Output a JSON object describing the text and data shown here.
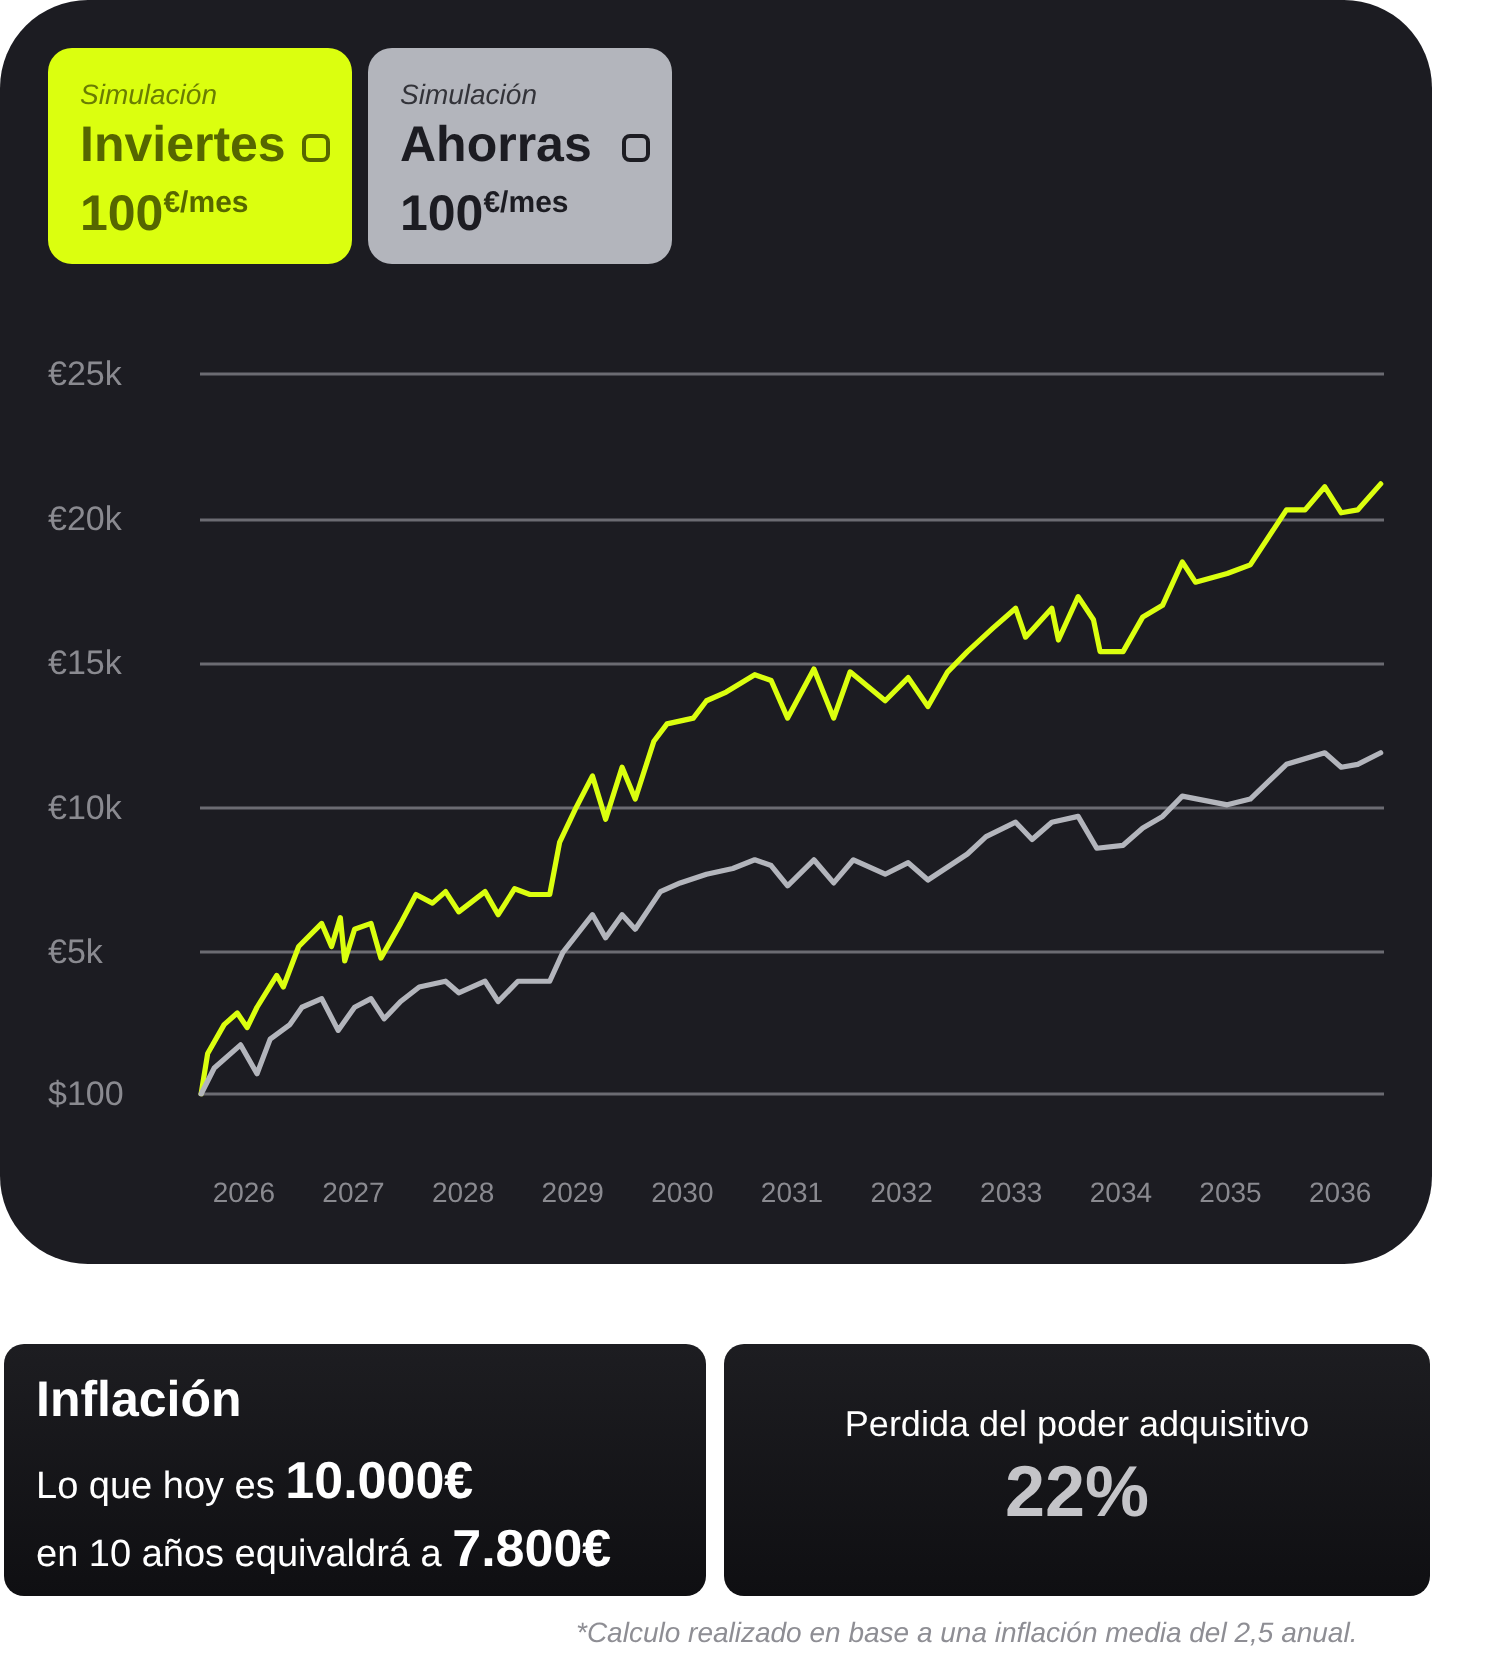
{
  "chart_data": [
    {
      "type": "line",
      "legend": "top left",
      "grid": "y",
      "marker": "none",
      "line_style": "solid",
      "annotations": [
        "Simulación",
        "100$^{€/mes}$",
        "Simulación",
        "100$^{€/mes}$"
      ],
      "xlim": [
        2025.6,
        2036.4
      ],
      "xticks": [
        2026,
        2027,
        2028,
        2029,
        2030,
        2031,
        2032,
        2033,
        2034,
        2035,
        2036
      ],
      "ylim": [
        100,
        25000
      ],
      "yticks": [
        {
          "value": 100,
          "label": "$100"
        },
        {
          "value": 5000,
          "label": "€5k"
        },
        {
          "value": 10000,
          "label": "€10k"
        },
        {
          "value": 15000,
          "label": "€15k"
        },
        {
          "value": 20000,
          "label": "€20k"
        },
        {
          "value": 25000,
          "label": "€25k"
        }
      ],
      "series": [
        {
          "name": "Inviertes",
          "color": "#dbff0f",
          "x": [
            2025.61,
            2025.67,
            2025.82,
            2025.94,
            2026.03,
            2026.12,
            2026.3,
            2026.36,
            2026.5,
            2026.71,
            2026.8,
            2026.88,
            2026.92,
            2027.01,
            2027.16,
            2027.25,
            2027.43,
            2027.57,
            2027.72,
            2027.84,
            2027.96,
            2028.2,
            2028.32,
            2028.47,
            2028.61,
            2028.79,
            2028.88,
            2029.03,
            2029.18,
            2029.3,
            2029.45,
            2029.57,
            2029.74,
            2029.86,
            2030.1,
            2030.22,
            2030.4,
            2030.66,
            2030.81,
            2030.96,
            2031.2,
            2031.38,
            2031.53,
            2031.85,
            2032.06,
            2032.24,
            2032.42,
            2032.6,
            2032.83,
            2033.04,
            2033.13,
            2033.37,
            2033.43,
            2033.61,
            2033.75,
            2033.81,
            2034.02,
            2034.2,
            2034.38,
            2034.56,
            2034.68,
            2034.97,
            2035.18,
            2035.51,
            2035.68,
            2035.86,
            2036.01,
            2036.16,
            2036.37
          ],
          "values": [
            100,
            1500,
            2500,
            2900,
            2400,
            3100,
            4200,
            3800,
            5200,
            6000,
            5200,
            6200,
            4700,
            5800,
            6000,
            4800,
            6000,
            7000,
            6700,
            7100,
            6400,
            7100,
            6300,
            7200,
            7000,
            7000,
            8800,
            10000,
            11100,
            9600,
            11400,
            10300,
            12300,
            12900,
            13100,
            13700,
            14000,
            14600,
            14400,
            13100,
            14800,
            13100,
            14700,
            13700,
            14500,
            13500,
            14700,
            15400,
            16200,
            16900,
            15900,
            16900,
            15800,
            17300,
            16500,
            15400,
            15400,
            16600,
            17000,
            18500,
            17800,
            18100,
            18400,
            20300,
            20300,
            21100,
            20200,
            20300,
            21200
          ]
        },
        {
          "name": "Ahorras",
          "color": "#b3b5bc",
          "x": [
            2025.61,
            2025.73,
            2025.97,
            2026.12,
            2026.24,
            2026.42,
            2026.53,
            2026.71,
            2026.86,
            2027.01,
            2027.16,
            2027.28,
            2027.43,
            2027.6,
            2027.84,
            2027.96,
            2028.2,
            2028.32,
            2028.5,
            2028.79,
            2028.91,
            2029.18,
            2029.3,
            2029.45,
            2029.57,
            2029.8,
            2029.98,
            2030.22,
            2030.46,
            2030.66,
            2030.81,
            2030.96,
            2031.2,
            2031.38,
            2031.56,
            2031.85,
            2032.06,
            2032.24,
            2032.6,
            2032.77,
            2033.04,
            2033.19,
            2033.37,
            2033.61,
            2033.78,
            2034.02,
            2034.2,
            2034.38,
            2034.56,
            2034.97,
            2035.18,
            2035.51,
            2035.86,
            2036.01,
            2036.16,
            2036.37
          ],
          "values": [
            100,
            1000,
            1800,
            800,
            2000,
            2500,
            3100,
            3400,
            2300,
            3100,
            3400,
            2700,
            3300,
            3800,
            4000,
            3600,
            4000,
            3300,
            4000,
            4000,
            5000,
            6300,
            5500,
            6300,
            5800,
            7100,
            7400,
            7700,
            7900,
            8200,
            8000,
            7300,
            8200,
            7400,
            8200,
            7700,
            8100,
            7500,
            8400,
            9000,
            9500,
            8900,
            9500,
            9700,
            8600,
            8700,
            9300,
            9700,
            10400,
            10100,
            10300,
            11500,
            11900,
            11400,
            11500,
            11900
          ]
        }
      ]
    },
    {
      "type": "other",
      "title": "Inflación",
      "annotations": [
        "Lo que hoy es ",
        "10.000€",
        "en 10 años equivaldrá a ",
        "7.800€"
      ]
    },
    {
      "type": "other",
      "title": "Perdida del poder adquisitivo",
      "annotations": [
        "22%",
        "*Calculo realizado en base a una inflación media del 2,5 anual."
      ]
    }
  ]
}
